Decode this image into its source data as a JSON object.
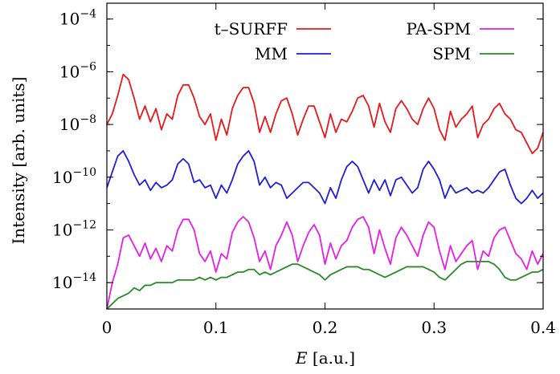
{
  "chart_data": {
    "type": "line",
    "xlabel": "E [a.u.]",
    "xlabel_italic": "E",
    "xlabel_rest": " [a.u.]",
    "ylabel": "Intensity [arb. units]",
    "xlim": [
      0,
      0.4
    ],
    "ylim_log10": [
      -15,
      -3.4
    ],
    "yscale": "log",
    "grid": false,
    "legend_placement": "top",
    "x_ticks": [
      {
        "value": 0,
        "label": "0"
      },
      {
        "value": 0.1,
        "label": "0.1"
      },
      {
        "value": 0.2,
        "label": "0.2"
      },
      {
        "value": 0.3,
        "label": "0.3"
      },
      {
        "value": 0.4,
        "label": "0.4"
      }
    ],
    "y_ticks": [
      {
        "exp": -4,
        "base": "10",
        "sup": "−4"
      },
      {
        "exp": -6,
        "base": "10",
        "sup": "−6"
      },
      {
        "exp": -8,
        "base": "10",
        "sup": "−8"
      },
      {
        "exp": -10,
        "base": "10",
        "sup": "−10"
      },
      {
        "exp": -12,
        "base": "10",
        "sup": "−12"
      },
      {
        "exp": -14,
        "base": "10",
        "sup": "−14"
      }
    ],
    "series": [
      {
        "name": "t–SURFF",
        "color": "#e41a1c",
        "x": [
          0,
          0.005,
          0.01,
          0.015,
          0.02,
          0.025,
          0.03,
          0.035,
          0.04,
          0.045,
          0.05,
          0.055,
          0.06,
          0.065,
          0.07,
          0.075,
          0.08,
          0.085,
          0.09,
          0.095,
          0.1,
          0.105,
          0.11,
          0.115,
          0.12,
          0.125,
          0.13,
          0.135,
          0.14,
          0.145,
          0.15,
          0.155,
          0.16,
          0.165,
          0.17,
          0.175,
          0.18,
          0.185,
          0.19,
          0.195,
          0.2,
          0.205,
          0.21,
          0.215,
          0.22,
          0.225,
          0.23,
          0.235,
          0.24,
          0.245,
          0.25,
          0.255,
          0.26,
          0.265,
          0.27,
          0.275,
          0.28,
          0.285,
          0.29,
          0.295,
          0.3,
          0.305,
          0.31,
          0.315,
          0.32,
          0.325,
          0.33,
          0.335,
          0.34,
          0.345,
          0.35,
          0.355,
          0.36,
          0.365,
          0.37,
          0.375,
          0.38,
          0.385,
          0.39,
          0.395,
          0.4
        ],
        "y": [
          -8.0,
          -7.6,
          -6.9,
          -6.1,
          -6.3,
          -7.0,
          -7.8,
          -7.3,
          -7.9,
          -7.4,
          -8.2,
          -7.6,
          -7.8,
          -6.9,
          -6.5,
          -6.5,
          -7.0,
          -7.7,
          -8.0,
          -7.6,
          -8.6,
          -7.8,
          -8.4,
          -7.4,
          -6.9,
          -6.6,
          -6.6,
          -7.2,
          -8.3,
          -7.7,
          -8.3,
          -7.6,
          -7.1,
          -7.0,
          -7.6,
          -8.4,
          -7.8,
          -7.3,
          -7.3,
          -7.9,
          -8.5,
          -7.6,
          -8.3,
          -7.8,
          -7.9,
          -7.5,
          -7.0,
          -6.9,
          -7.3,
          -8.1,
          -7.2,
          -7.9,
          -8.3,
          -7.4,
          -7.1,
          -7.4,
          -7.8,
          -8.0,
          -7.4,
          -7.0,
          -7.4,
          -8.2,
          -8.6,
          -7.5,
          -8.1,
          -7.8,
          -7.6,
          -7.3,
          -8.5,
          -8.0,
          -7.8,
          -7.4,
          -7.2,
          -7.6,
          -7.8,
          -8.2,
          -8.3,
          -8.7,
          -9.1,
          -8.9,
          -8.3
        ]
      },
      {
        "name": "MM",
        "color": "#1f1fd2",
        "x": [
          0,
          0.005,
          0.01,
          0.015,
          0.02,
          0.025,
          0.03,
          0.035,
          0.04,
          0.045,
          0.05,
          0.055,
          0.06,
          0.065,
          0.07,
          0.075,
          0.08,
          0.085,
          0.09,
          0.095,
          0.1,
          0.105,
          0.11,
          0.115,
          0.12,
          0.125,
          0.13,
          0.135,
          0.14,
          0.145,
          0.15,
          0.155,
          0.16,
          0.165,
          0.17,
          0.175,
          0.18,
          0.185,
          0.19,
          0.195,
          0.2,
          0.205,
          0.21,
          0.215,
          0.22,
          0.225,
          0.23,
          0.235,
          0.24,
          0.245,
          0.25,
          0.255,
          0.26,
          0.265,
          0.27,
          0.275,
          0.28,
          0.285,
          0.29,
          0.295,
          0.3,
          0.305,
          0.31,
          0.315,
          0.32,
          0.325,
          0.33,
          0.335,
          0.34,
          0.345,
          0.35,
          0.355,
          0.36,
          0.365,
          0.37,
          0.375,
          0.38,
          0.385,
          0.39,
          0.395,
          0.4
        ],
        "y": [
          -10.4,
          -9.8,
          -9.2,
          -9.0,
          -9.4,
          -9.9,
          -10.3,
          -10.1,
          -10.5,
          -10.2,
          -10.4,
          -10.3,
          -10.1,
          -9.5,
          -9.3,
          -9.5,
          -10.2,
          -10.1,
          -10.4,
          -10.3,
          -10.8,
          -10.3,
          -10.6,
          -10.1,
          -9.5,
          -9.2,
          -9.0,
          -9.4,
          -10.3,
          -10.0,
          -10.4,
          -10.2,
          -10.3,
          -10.8,
          -10.6,
          -10.4,
          -10.2,
          -10.2,
          -10.4,
          -10.6,
          -11.0,
          -10.4,
          -10.8,
          -10.1,
          -9.6,
          -9.4,
          -9.6,
          -10.1,
          -10.6,
          -10.1,
          -10.5,
          -10.1,
          -10.7,
          -10.1,
          -10.0,
          -10.3,
          -10.6,
          -10.4,
          -9.7,
          -9.4,
          -9.7,
          -10.1,
          -10.8,
          -10.3,
          -10.6,
          -10.5,
          -10.4,
          -10.6,
          -10.5,
          -10.6,
          -10.4,
          -10.1,
          -9.8,
          -9.7,
          -10.3,
          -10.8,
          -11.0,
          -10.8,
          -10.5,
          -10.8,
          -10.6
        ]
      },
      {
        "name": "PA-SPM",
        "color": "#e61ee6",
        "x": [
          0,
          0.005,
          0.01,
          0.015,
          0.02,
          0.025,
          0.03,
          0.035,
          0.04,
          0.045,
          0.05,
          0.055,
          0.06,
          0.065,
          0.07,
          0.075,
          0.08,
          0.085,
          0.09,
          0.095,
          0.1,
          0.105,
          0.11,
          0.115,
          0.12,
          0.125,
          0.13,
          0.135,
          0.14,
          0.145,
          0.15,
          0.155,
          0.16,
          0.165,
          0.17,
          0.175,
          0.18,
          0.185,
          0.19,
          0.195,
          0.2,
          0.205,
          0.21,
          0.215,
          0.22,
          0.225,
          0.23,
          0.235,
          0.24,
          0.245,
          0.25,
          0.255,
          0.26,
          0.265,
          0.27,
          0.275,
          0.28,
          0.285,
          0.29,
          0.295,
          0.3,
          0.305,
          0.31,
          0.315,
          0.32,
          0.325,
          0.33,
          0.335,
          0.34,
          0.345,
          0.35,
          0.355,
          0.36,
          0.365,
          0.37,
          0.375,
          0.38,
          0.385,
          0.39,
          0.395,
          0.4
        ],
        "y": [
          -15.0,
          -14.0,
          -13.3,
          -12.3,
          -12.2,
          -12.6,
          -13.0,
          -12.5,
          -13.1,
          -12.7,
          -13.2,
          -12.6,
          -12.8,
          -12.0,
          -11.6,
          -11.6,
          -12.0,
          -12.9,
          -13.2,
          -12.8,
          -13.6,
          -12.9,
          -13.1,
          -12.1,
          -11.7,
          -11.5,
          -11.7,
          -12.3,
          -13.2,
          -12.8,
          -13.5,
          -12.6,
          -12.2,
          -11.7,
          -12.2,
          -13.2,
          -12.6,
          -12.1,
          -11.8,
          -12.2,
          -13.3,
          -12.5,
          -13.1,
          -12.6,
          -12.4,
          -11.9,
          -11.6,
          -11.5,
          -11.9,
          -12.9,
          -12.0,
          -12.7,
          -13.3,
          -12.3,
          -11.9,
          -12.2,
          -12.6,
          -13.0,
          -12.2,
          -11.7,
          -11.9,
          -12.8,
          -13.5,
          -12.6,
          -13.2,
          -12.9,
          -12.6,
          -12.4,
          -13.5,
          -12.8,
          -13.0,
          -12.3,
          -12.0,
          -11.9,
          -12.4,
          -12.9,
          -13.1,
          -13.5,
          -12.8,
          -13.3,
          -12.9
        ]
      },
      {
        "name": "SPM",
        "color": "#2a8a2a",
        "x": [
          0,
          0.005,
          0.01,
          0.015,
          0.02,
          0.025,
          0.03,
          0.035,
          0.04,
          0.045,
          0.05,
          0.055,
          0.06,
          0.065,
          0.07,
          0.075,
          0.08,
          0.085,
          0.09,
          0.095,
          0.1,
          0.105,
          0.11,
          0.115,
          0.12,
          0.125,
          0.13,
          0.135,
          0.14,
          0.145,
          0.15,
          0.155,
          0.16,
          0.165,
          0.17,
          0.175,
          0.18,
          0.185,
          0.19,
          0.195,
          0.2,
          0.205,
          0.21,
          0.215,
          0.22,
          0.225,
          0.23,
          0.235,
          0.24,
          0.245,
          0.25,
          0.255,
          0.26,
          0.265,
          0.27,
          0.275,
          0.28,
          0.285,
          0.29,
          0.295,
          0.3,
          0.305,
          0.31,
          0.315,
          0.32,
          0.325,
          0.33,
          0.335,
          0.34,
          0.345,
          0.35,
          0.355,
          0.36,
          0.365,
          0.37,
          0.375,
          0.38,
          0.385,
          0.39,
          0.395,
          0.4
        ],
        "y": [
          -15.0,
          -14.8,
          -14.6,
          -14.5,
          -14.4,
          -14.2,
          -14.3,
          -14.1,
          -14.1,
          -14.0,
          -14.0,
          -14.0,
          -14.0,
          -13.9,
          -13.9,
          -13.9,
          -13.9,
          -13.8,
          -13.9,
          -13.8,
          -13.9,
          -13.8,
          -13.8,
          -13.7,
          -13.6,
          -13.6,
          -13.5,
          -13.5,
          -13.7,
          -13.6,
          -13.7,
          -13.6,
          -13.5,
          -13.4,
          -13.3,
          -13.3,
          -13.4,
          -13.5,
          -13.6,
          -13.7,
          -13.9,
          -13.7,
          -13.6,
          -13.5,
          -13.4,
          -13.4,
          -13.4,
          -13.5,
          -13.5,
          -13.6,
          -13.7,
          -13.8,
          -13.7,
          -13.6,
          -13.5,
          -13.4,
          -13.4,
          -13.4,
          -13.4,
          -13.5,
          -13.6,
          -13.8,
          -13.9,
          -13.7,
          -13.5,
          -13.3,
          -13.2,
          -13.2,
          -13.2,
          -13.2,
          -13.2,
          -13.3,
          -13.5,
          -13.8,
          -13.9,
          -13.9,
          -13.8,
          -13.7,
          -13.6,
          -13.6,
          -13.5
        ]
      }
    ]
  }
}
